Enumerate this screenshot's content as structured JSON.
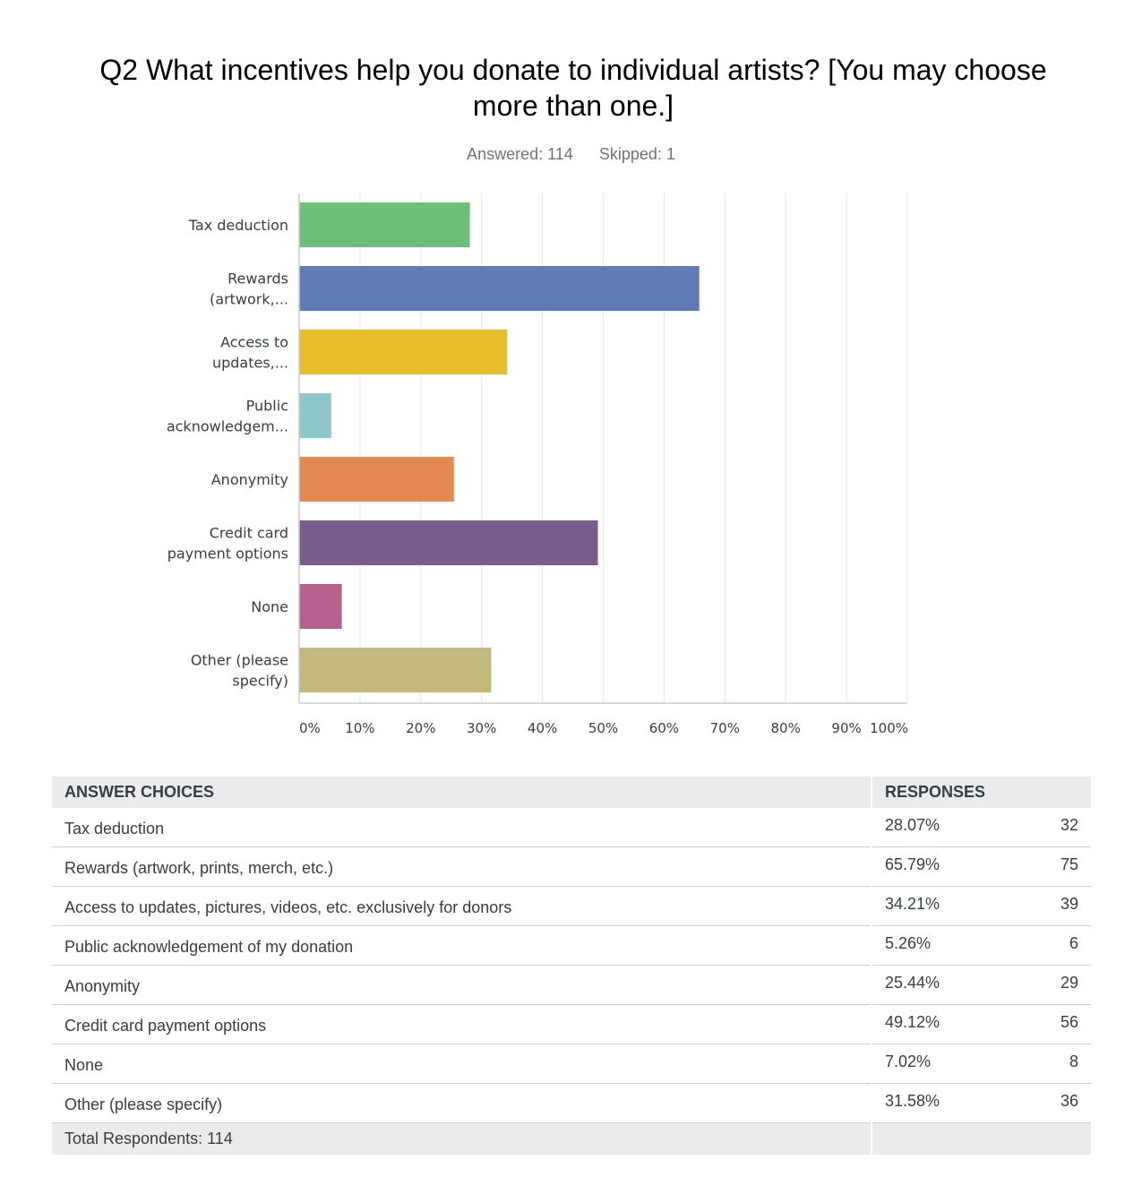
{
  "question": {
    "title": "Q2 What incentives help you donate to individual artists? [You may choose more than one.]",
    "answered": "Answered: 114",
    "skipped": "Skipped: 1"
  },
  "chart_data": {
    "type": "bar",
    "orientation": "horizontal",
    "categories": [
      "Tax deduction",
      "Rewards (artwork,...",
      "Access to updates,...",
      "Public acknowledgem...",
      "Anonymity",
      "Credit card payment options",
      "None",
      "Other (please specify)"
    ],
    "category_lines": [
      [
        "Tax deduction"
      ],
      [
        "Rewards",
        "(artwork,..."
      ],
      [
        "Access to",
        "updates,..."
      ],
      [
        "Public",
        "acknowledgem..."
      ],
      [
        "Anonymity"
      ],
      [
        "Credit card",
        "payment options"
      ],
      [
        "None"
      ],
      [
        "Other (please",
        "specify)"
      ]
    ],
    "values": [
      28.07,
      65.79,
      34.21,
      5.26,
      25.44,
      49.12,
      7.02,
      31.58
    ],
    "colors": [
      "#6bbf76",
      "#5e7bb5",
      "#e8bd2c",
      "#8dc6cb",
      "#e38a52",
      "#775c8d",
      "#b9618e",
      "#c3b87e"
    ],
    "xlim": [
      0,
      100
    ],
    "xticks": [
      "0%",
      "10%",
      "20%",
      "30%",
      "40%",
      "50%",
      "60%",
      "70%",
      "80%",
      "90%",
      "100%"
    ],
    "grid": true
  },
  "table": {
    "headers": {
      "choices": "ANSWER CHOICES",
      "responses": "RESPONSES"
    },
    "rows": [
      {
        "choice": "Tax deduction",
        "percent": "28.07%",
        "count": "32"
      },
      {
        "choice": "Rewards (artwork, prints, merch, etc.)",
        "percent": "65.79%",
        "count": "75"
      },
      {
        "choice": "Access to updates, pictures, videos, etc. exclusively for donors",
        "percent": "34.21%",
        "count": "39"
      },
      {
        "choice": "Public acknowledgement of my donation",
        "percent": "5.26%",
        "count": "6"
      },
      {
        "choice": "Anonymity",
        "percent": "25.44%",
        "count": "29"
      },
      {
        "choice": "Credit card payment options",
        "percent": "49.12%",
        "count": "56"
      },
      {
        "choice": "None",
        "percent": "7.02%",
        "count": "8"
      },
      {
        "choice": "Other (please specify)",
        "percent": "31.58%",
        "count": "36"
      }
    ],
    "total": "Total Respondents: 114"
  }
}
